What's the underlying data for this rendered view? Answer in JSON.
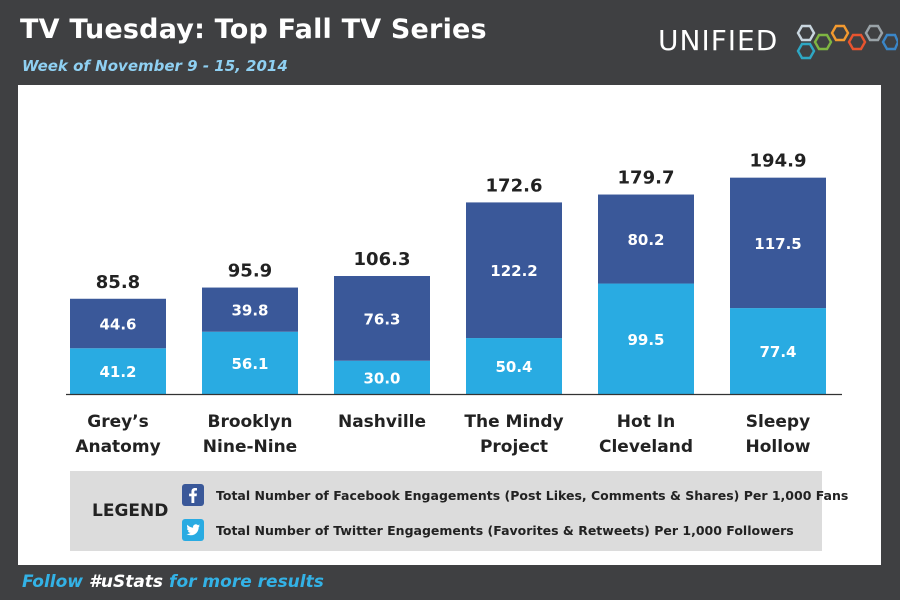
{
  "header": {
    "title": "TV Tuesday: Top Fall TV Series",
    "subtitle": "Week of November 9 - 15, 2014",
    "logo_text": "UNIFIED"
  },
  "colors": {
    "facebook": "#3a5899",
    "twitter": "#29abe2"
  },
  "chart_data": {
    "type": "bar",
    "stacked": true,
    "categories": [
      [
        "Grey’s",
        "Anatomy"
      ],
      [
        "Brooklyn",
        "Nine-Nine"
      ],
      [
        "Nashville"
      ],
      [
        "The Mindy",
        "Project"
      ],
      [
        "Hot In",
        "Cleveland"
      ],
      [
        "Sleepy",
        "Hollow"
      ]
    ],
    "series": [
      {
        "name": "Total Number of Twitter Engagements (Favorites & Retweets) Per 1,000 Followers",
        "values": [
          41.2,
          56.1,
          30.0,
          50.4,
          99.5,
          77.4
        ]
      },
      {
        "name": "Total Number of Facebook Engagements (Post Likes, Comments & Shares) Per 1,000 Fans",
        "values": [
          44.6,
          39.8,
          76.3,
          122.2,
          80.2,
          117.5
        ]
      }
    ],
    "value_labels": {
      "twitter": [
        "41.2",
        "56.1",
        "30.0",
        "50.4",
        "99.5",
        "77.4"
      ],
      "facebook": [
        "44.6",
        "39.8",
        "76.3",
        "122.2",
        "80.2",
        "117.5"
      ],
      "totals": [
        "85.8",
        "95.9",
        "106.3",
        "172.6",
        "179.7",
        "194.9"
      ]
    },
    "ylim": [
      0,
      200
    ],
    "grid": false,
    "legend_position": "bottom"
  },
  "legend": {
    "title": "LEGEND",
    "facebook_label": "Total Number of Facebook Engagements (Post Likes, Comments & Shares) Per 1,000 Fans",
    "twitter_label": "Total Number of Twitter Engagements (Favorites & Retweets) Per 1,000 Followers",
    "facebook_icon": "facebook-icon",
    "twitter_icon": "twitter-icon"
  },
  "footer": {
    "follow": "Follow",
    "hashtag": "#uStats",
    "more": "for more results"
  }
}
